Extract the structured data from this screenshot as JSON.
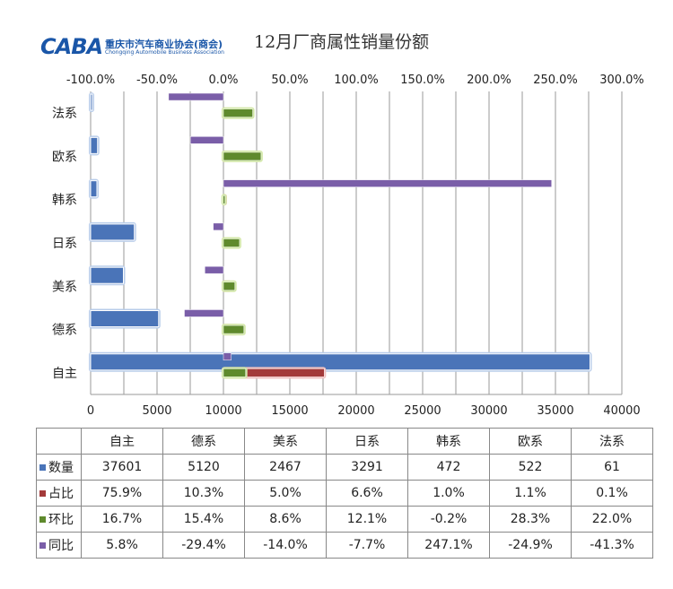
{
  "title": "12月厂商属性销量份额",
  "logo": {
    "mark": "CABA",
    "name_cn": "重庆市汽车商业协会(商会)",
    "name_en": "Chongqing Automobile Business Association"
  },
  "chart_data": {
    "type": "bar",
    "orientation": "horizontal",
    "categories": [
      "法系",
      "欧系",
      "韩系",
      "日系",
      "美系",
      "德系",
      "自主"
    ],
    "primary_axis": {
      "position": "bottom",
      "range": [
        0,
        40000
      ],
      "ticks": [
        "0",
        "5000",
        "10000",
        "15000",
        "20000",
        "25000",
        "30000",
        "35000",
        "40000"
      ]
    },
    "secondary_axis": {
      "position": "top",
      "range": [
        -100,
        300
      ],
      "unit": "%",
      "ticks": [
        "-100.0%",
        "-50.0%",
        "0.0%",
        "50.0%",
        "100.0%",
        "150.0%",
        "200.0%",
        "250.0%",
        "300.0%"
      ]
    },
    "series": [
      {
        "name": "数量",
        "axis": "primary",
        "color": "#4a74b8",
        "values": [
          61,
          522,
          472,
          3291,
          2467,
          5120,
          37601
        ]
      },
      {
        "name": "占比",
        "axis": "secondary",
        "color": "#a33a3a",
        "values": [
          0.1,
          1.1,
          1.0,
          6.6,
          5.0,
          10.3,
          75.9
        ]
      },
      {
        "name": "环比",
        "axis": "secondary",
        "color": "#5f8a2d",
        "values": [
          22.0,
          28.3,
          -0.2,
          12.1,
          8.6,
          15.4,
          16.7
        ]
      },
      {
        "name": "同比",
        "axis": "secondary",
        "color": "#7a5ea8",
        "values": [
          -41.3,
          -24.9,
          247.1,
          -7.7,
          -14.0,
          -29.4,
          5.8
        ]
      }
    ]
  },
  "table": {
    "columns": [
      "自主",
      "德系",
      "美系",
      "日系",
      "韩系",
      "欧系",
      "法系"
    ],
    "rows": [
      {
        "label": "数量",
        "color": "#4a74b8",
        "cells": [
          "37601",
          "5120",
          "2467",
          "3291",
          "472",
          "522",
          "61"
        ]
      },
      {
        "label": "占比",
        "color": "#a33a3a",
        "cells": [
          "75.9%",
          "10.3%",
          "5.0%",
          "6.6%",
          "1.0%",
          "1.1%",
          "0.1%"
        ]
      },
      {
        "label": "环比",
        "color": "#5f8a2d",
        "cells": [
          "16.7%",
          "15.4%",
          "8.6%",
          "12.1%",
          "-0.2%",
          "28.3%",
          "22.0%"
        ]
      },
      {
        "label": "同比",
        "color": "#7a5ea8",
        "cells": [
          "5.8%",
          "-29.4%",
          "-14.0%",
          "-7.7%",
          "247.1%",
          "-24.9%",
          "-41.3%"
        ]
      }
    ]
  }
}
